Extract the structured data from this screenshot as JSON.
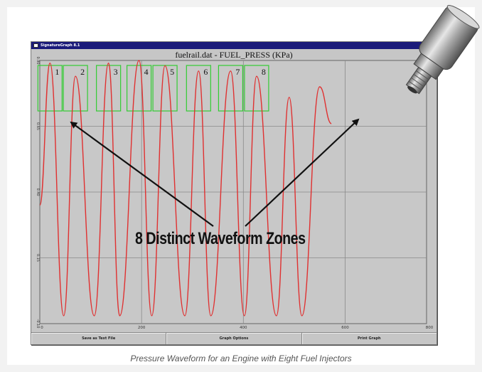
{
  "window": {
    "title": "SignatureGraph 8.1",
    "plot_title": "fuelrail.dat - FUEL_PRESS (KPa)"
  },
  "toolbar": {
    "save_label": "Save as Text File",
    "options_label": "Graph Options",
    "print_label": "Print Graph"
  },
  "annotation": {
    "text": "8 Distinct Waveform Zones"
  },
  "caption": "Pressure Waveform for an Engine with Eight Fuel Injectors",
  "colors": {
    "trace": "#e03030",
    "zone_box": "#33cc33",
    "plot_bg": "#c8c8c8"
  },
  "icons": [
    "fuel-pressure-sensor-icon"
  ],
  "chart_data": {
    "type": "line",
    "title": "fuelrail.dat - FUEL_PRESS (KPa)",
    "xlabel": "",
    "ylabel": "",
    "xlim": [
      0,
      800
    ],
    "ylim": [
      -0.1,
      0.9
    ],
    "x_ticks": [
      "0",
      "200",
      "400",
      "600",
      "800"
    ],
    "y_ticks": [
      "0.90",
      "0.65",
      "0.40",
      "0.15",
      "-0.10"
    ],
    "grid": true,
    "zones": [
      "1",
      "2",
      "3",
      "4",
      "5",
      "6",
      "7",
      "8"
    ],
    "series": [
      {
        "x": [
          0,
          20,
          47,
          70,
          107,
          135,
          157,
          195,
          220,
          246,
          285,
          312,
          336,
          375,
          402,
          426,
          465,
          490,
          515,
          550,
          573
        ],
        "values": [
          0.35,
          0.89,
          -0.07,
          0.84,
          -0.07,
          0.89,
          -0.07,
          0.9,
          -0.07,
          0.88,
          -0.07,
          0.86,
          -0.07,
          0.86,
          -0.07,
          0.84,
          -0.07,
          0.76,
          -0.07,
          0.8,
          0.66
        ]
      }
    ]
  }
}
